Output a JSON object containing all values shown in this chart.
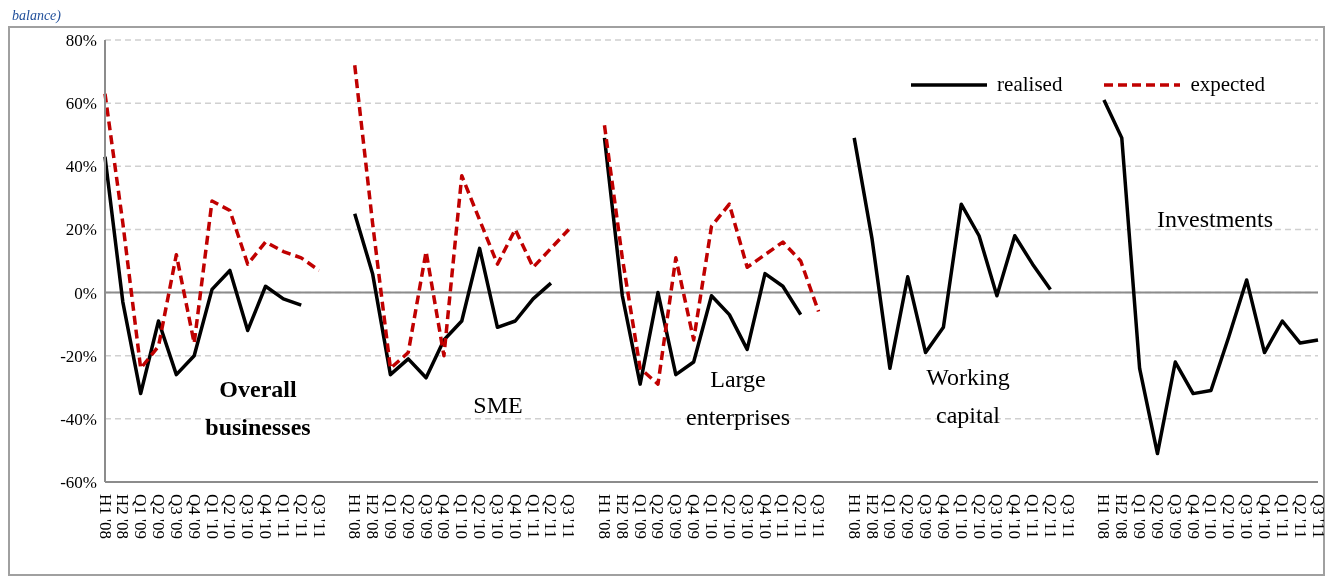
{
  "chart_data": {
    "type": "line",
    "title": "balance)",
    "categories": [
      "H1 '08",
      "H2 '08",
      "Q1 '09",
      "Q2 '09",
      "Q3 '09",
      "Q4 '09",
      "Q1 '10",
      "Q2 '10",
      "Q3 '10",
      "Q4 '10",
      "Q1 '11",
      "Q2 '11",
      "Q3 '11",
      null,
      "H1 '08",
      "H2 '08",
      "Q1 '09",
      "Q2 '09",
      "Q3 '09",
      "Q4 '09",
      "Q1 '10",
      "Q2 '10",
      "Q3 '10",
      "Q4 '10",
      "Q1 '11",
      "Q2 '11",
      "Q3 '11",
      null,
      "H1 '08",
      "H2 '08",
      "Q1 '09",
      "Q2 '09",
      "Q3 '09",
      "Q4 '09",
      "Q1 '10",
      "Q2 '10",
      "Q3 '10",
      "Q4 '10",
      "Q1 '11",
      "Q2 '11",
      "Q3 '11",
      null,
      "H1 '08",
      "H2 '08",
      "Q1 '09",
      "Q2 '09",
      "Q3 '09",
      "Q4 '09",
      "Q1 '10",
      "Q2 '10",
      "Q3 '10",
      "Q4 '10",
      "Q1 '11",
      "Q2 '11",
      "Q3 '11",
      null,
      "H1 '08",
      "H2 '08",
      "Q1 '09",
      "Q2 '09",
      "Q3 '09",
      "Q4 '09",
      "Q1 '10",
      "Q2 '10",
      "Q3 '10",
      "Q4 '10",
      "Q1 '11",
      "Q2 '11",
      "Q3 '11"
    ],
    "series": [
      {
        "name": "realised",
        "color": "#000000",
        "line_style": "solid",
        "values": [
          43,
          -3,
          -32,
          -9,
          -26,
          -20,
          1,
          7,
          -12,
          2,
          -2,
          -4,
          null,
          null,
          25,
          6,
          -26,
          -21,
          -27,
          -15,
          -9,
          14,
          -11,
          -9,
          -2,
          3,
          null,
          null,
          49,
          -1,
          -29,
          0,
          -26,
          -22,
          -1,
          -7,
          -18,
          6,
          2,
          -7,
          null,
          null,
          49,
          17,
          -24,
          5,
          -19,
          -11,
          28,
          18,
          -1,
          18,
          9,
          1,
          null,
          null,
          61,
          49,
          -24,
          -51,
          -22,
          -32,
          -31,
          -14,
          4,
          -19,
          -9,
          -16,
          -15
        ]
      },
      {
        "name": "expected",
        "color": "#c00000",
        "line_style": "dashed",
        "values": [
          63,
          22,
          -24,
          -17,
          12,
          -16,
          29,
          26,
          9,
          16,
          13,
          11,
          7,
          null,
          72,
          22,
          -24,
          -19,
          13,
          -20,
          37,
          23,
          9,
          20,
          8,
          14,
          20,
          null,
          53,
          11,
          -24,
          -29,
          11,
          -15,
          21,
          28,
          8,
          12,
          16,
          10,
          -6,
          null,
          null,
          null,
          null,
          null,
          null,
          null,
          null,
          null,
          null,
          null,
          null,
          null,
          null,
          null,
          null,
          null,
          null,
          null,
          null,
          null,
          null,
          null,
          null,
          null,
          null,
          null,
          null
        ]
      }
    ],
    "ylim": [
      -60,
      80
    ],
    "yticks": [
      {
        "value": -60,
        "label": "-60%"
      },
      {
        "value": -40,
        "label": "-40%"
      },
      {
        "value": -20,
        "label": "-20%"
      },
      {
        "value": 0,
        "label": "0%"
      },
      {
        "value": 20,
        "label": "20%"
      },
      {
        "value": 40,
        "label": "40%"
      },
      {
        "value": 60,
        "label": "60%"
      },
      {
        "value": 80,
        "label": "80%"
      }
    ],
    "grid": "y",
    "legend": "top right",
    "marker": "none",
    "annotations": [
      "Overall businesses",
      "SME",
      "Large enterprises",
      "Working capital",
      "Investments"
    ]
  }
}
